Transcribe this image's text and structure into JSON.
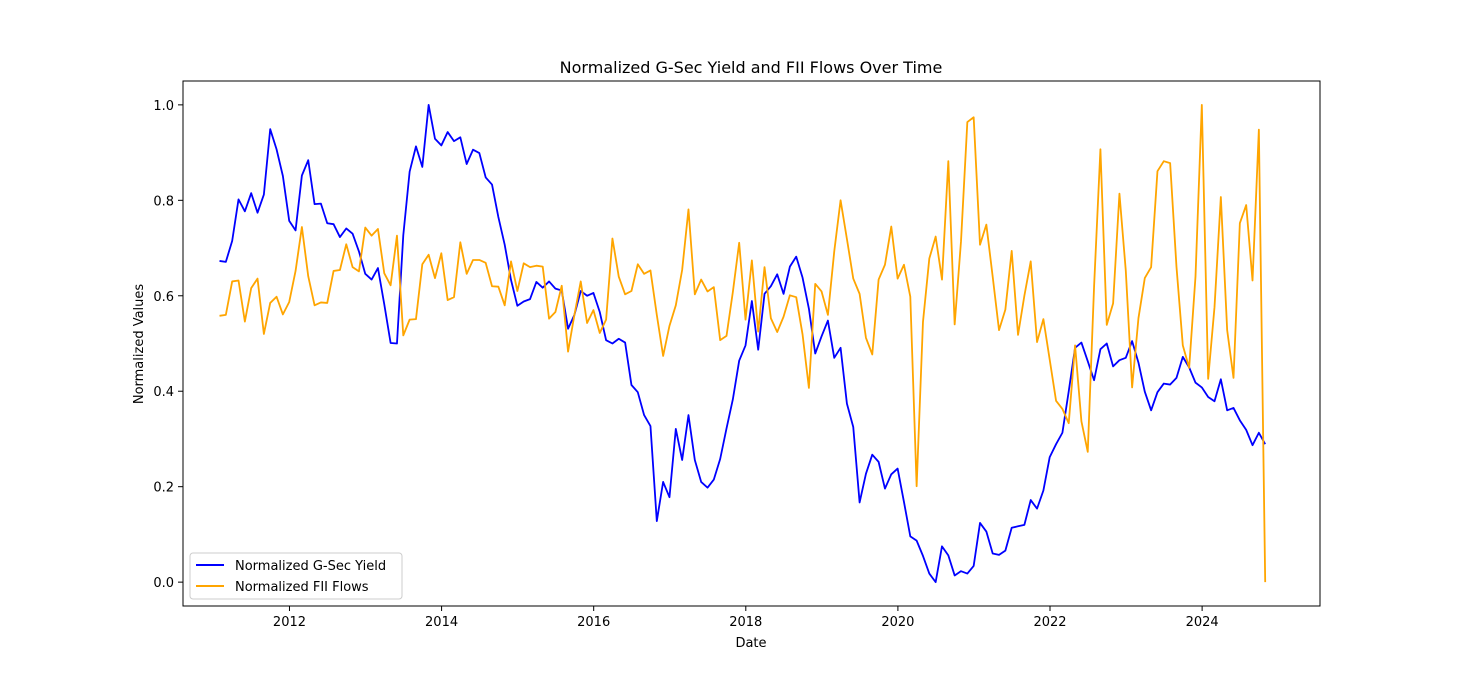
{
  "chart_data": {
    "type": "line",
    "title": "Normalized G-Sec Yield and FII Flows Over Time",
    "xlabel": "Date",
    "ylabel": "Normalized Values",
    "xlim": [
      2010.6,
      2025.55
    ],
    "ylim": [
      -0.05,
      1.05
    ],
    "x_ticks": [
      2012,
      2014,
      2016,
      2018,
      2020,
      2022,
      2024
    ],
    "x_tick_labels": [
      "2012",
      "2014",
      "2016",
      "2018",
      "2020",
      "2022",
      "2024"
    ],
    "y_ticks": [
      0.0,
      0.2,
      0.4,
      0.6,
      0.8,
      1.0
    ],
    "y_tick_labels": [
      "0.0",
      "0.2",
      "0.4",
      "0.6",
      "0.8",
      "1.0"
    ],
    "grid": false,
    "legend_position": "lower-left",
    "x_start": 2011.08,
    "x_step": 0.08333,
    "series": [
      {
        "name": "Normalized G-Sec Yield",
        "color": "#0000ff",
        "values": [
          0.673,
          0.671,
          0.715,
          0.802,
          0.777,
          0.815,
          0.774,
          0.812,
          0.949,
          0.907,
          0.851,
          0.757,
          0.737,
          0.852,
          0.884,
          0.792,
          0.793,
          0.752,
          0.75,
          0.723,
          0.741,
          0.73,
          0.693,
          0.646,
          0.634,
          0.658,
          0.582,
          0.501,
          0.5,
          0.727,
          0.86,
          0.913,
          0.87,
          1.0,
          0.929,
          0.915,
          0.943,
          0.924,
          0.932,
          0.876,
          0.906,
          0.899,
          0.848,
          0.833,
          0.765,
          0.707,
          0.633,
          0.579,
          0.588,
          0.593,
          0.629,
          0.617,
          0.63,
          0.615,
          0.611,
          0.531,
          0.56,
          0.61,
          0.6,
          0.606,
          0.566,
          0.507,
          0.5,
          0.51,
          0.502,
          0.413,
          0.398,
          0.35,
          0.327,
          0.128,
          0.21,
          0.178,
          0.321,
          0.256,
          0.35,
          0.256,
          0.21,
          0.198,
          0.215,
          0.258,
          0.322,
          0.383,
          0.464,
          0.496,
          0.589,
          0.487,
          0.604,
          0.62,
          0.645,
          0.604,
          0.661,
          0.682,
          0.638,
          0.573,
          0.479,
          0.515,
          0.548,
          0.47,
          0.491,
          0.374,
          0.325,
          0.167,
          0.227,
          0.267,
          0.252,
          0.196,
          0.226,
          0.238,
          0.168,
          0.096,
          0.087,
          0.055,
          0.018,
          0.0,
          0.075,
          0.056,
          0.014,
          0.023,
          0.018,
          0.034,
          0.124,
          0.106,
          0.06,
          0.057,
          0.066,
          0.114,
          0.117,
          0.12,
          0.172,
          0.154,
          0.192,
          0.262,
          0.289,
          0.313,
          0.4,
          0.491,
          0.502,
          0.463,
          0.423,
          0.488,
          0.5,
          0.452,
          0.465,
          0.47,
          0.505,
          0.46,
          0.399,
          0.36,
          0.398,
          0.416,
          0.414,
          0.428,
          0.472,
          0.45,
          0.418,
          0.408,
          0.388,
          0.379,
          0.425,
          0.36,
          0.365,
          0.339,
          0.319,
          0.287,
          0.313,
          0.289
        ]
      },
      {
        "name": "Normalized FII Flows",
        "color": "#ffa500",
        "values": [
          0.558,
          0.56,
          0.63,
          0.632,
          0.546,
          0.616,
          0.636,
          0.52,
          0.585,
          0.598,
          0.561,
          0.587,
          0.652,
          0.744,
          0.641,
          0.58,
          0.586,
          0.585,
          0.652,
          0.654,
          0.708,
          0.66,
          0.651,
          0.743,
          0.726,
          0.74,
          0.647,
          0.622,
          0.726,
          0.517,
          0.55,
          0.551,
          0.666,
          0.686,
          0.637,
          0.689,
          0.591,
          0.597,
          0.712,
          0.646,
          0.675,
          0.675,
          0.669,
          0.62,
          0.619,
          0.58,
          0.672,
          0.61,
          0.668,
          0.66,
          0.663,
          0.661,
          0.552,
          0.566,
          0.621,
          0.483,
          0.56,
          0.63,
          0.543,
          0.57,
          0.522,
          0.55,
          0.72,
          0.64,
          0.603,
          0.61,
          0.666,
          0.646,
          0.653,
          0.56,
          0.474,
          0.537,
          0.58,
          0.654,
          0.781,
          0.603,
          0.634,
          0.609,
          0.618,
          0.507,
          0.516,
          0.608,
          0.711,
          0.55,
          0.674,
          0.525,
          0.66,
          0.553,
          0.524,
          0.556,
          0.601,
          0.597,
          0.519,
          0.407,
          0.625,
          0.609,
          0.56,
          0.693,
          0.8,
          0.719,
          0.636,
          0.604,
          0.512,
          0.477,
          0.634,
          0.665,
          0.745,
          0.636,
          0.665,
          0.598,
          0.201,
          0.545,
          0.678,
          0.724,
          0.634,
          0.882,
          0.54,
          0.714,
          0.964,
          0.974,
          0.707,
          0.749,
          0.64,
          0.528,
          0.571,
          0.694,
          0.518,
          0.6,
          0.672,
          0.503,
          0.551,
          0.466,
          0.38,
          0.363,
          0.333,
          0.496,
          0.337,
          0.273,
          0.62,
          0.907,
          0.539,
          0.584,
          0.814,
          0.653,
          0.408,
          0.553,
          0.637,
          0.66,
          0.861,
          0.882,
          0.878,
          0.661,
          0.496,
          0.449,
          0.64,
          1.0,
          0.426,
          0.576,
          0.807,
          0.528,
          0.428,
          0.752,
          0.79,
          0.632,
          0.948,
          0.0
        ]
      }
    ]
  }
}
